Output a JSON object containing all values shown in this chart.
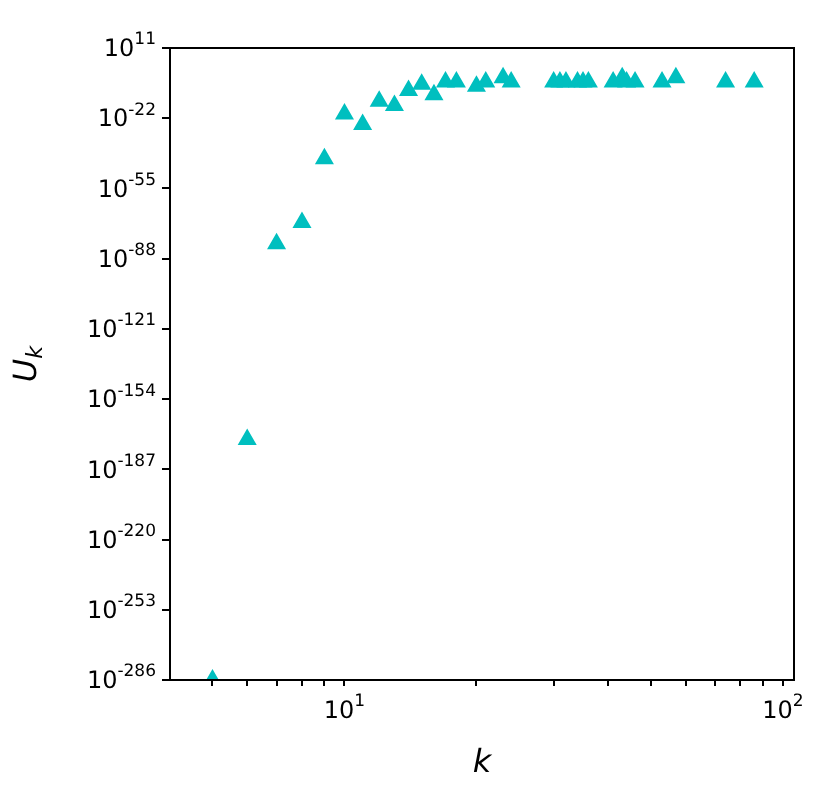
{
  "chart_data": {
    "type": "scatter",
    "xlabel": "k",
    "ylabel": "U$_{k}$",
    "log": "xy",
    "grid": false,
    "marker": "triangle",
    "xlim": [
      4,
      106
    ],
    "ylim": [
      1e-286,
      100000000000.0
    ],
    "xticks": [
      {
        "value": 5,
        "label": null
      },
      {
        "value": 6,
        "label": null
      },
      {
        "value": 7,
        "label": null
      },
      {
        "value": 8,
        "label": null
      },
      {
        "value": 9,
        "label": null
      },
      {
        "value": 10,
        "label": "10$^{1}$"
      },
      {
        "value": 20,
        "label": null
      },
      {
        "value": 30,
        "label": null
      },
      {
        "value": 40,
        "label": null
      },
      {
        "value": 50,
        "label": null
      },
      {
        "value": 60,
        "label": null
      },
      {
        "value": 70,
        "label": null
      },
      {
        "value": 80,
        "label": null
      },
      {
        "value": 90,
        "label": null
      },
      {
        "value": 100,
        "label": "10$^{2}$"
      }
    ],
    "yticks": [
      {
        "value": 1e-286,
        "label": "10$^{-286}$"
      },
      {
        "value": 1e-253,
        "label": "10$^{-253}$"
      },
      {
        "value": 1e-220,
        "label": "10$^{-220}$"
      },
      {
        "value": 1e-187,
        "label": "10$^{-187}$"
      },
      {
        "value": 1e-154,
        "label": "10$^{-154}$"
      },
      {
        "value": 1e-121,
        "label": "10$^{-121}$"
      },
      {
        "value": 1e-88,
        "label": "10$^{-88}$"
      },
      {
        "value": 1e-55,
        "label": "10$^{-55}$"
      },
      {
        "value": 1e-22,
        "label": "10$^{-22}$"
      },
      {
        "value": 100000000000.0,
        "label": "10$^{11}$"
      }
    ],
    "x": [
      5,
      6,
      7,
      8,
      9,
      10,
      11,
      12,
      13,
      14,
      15,
      16,
      17,
      18,
      20,
      21,
      23,
      24,
      30,
      31,
      32,
      34,
      35,
      36,
      41,
      43,
      44,
      46,
      53,
      57,
      74,
      86
    ],
    "series": [
      {
        "color": "#00bfbf",
        "values": [
          1e-286,
          1e-173,
          1e-81,
          1e-71,
          1e-41,
          1e-20,
          1e-25,
          1e-14,
          1e-16,
          1e-09,
          1e-06,
          1e-11,
          1e-05,
          1e-05,
          1e-07,
          1e-05,
          0.001,
          1e-05,
          1e-05,
          1e-05,
          1e-05,
          1e-05,
          1e-05,
          1e-05,
          1e-05,
          0.001,
          1e-05,
          1e-05,
          1e-05,
          0.001,
          1e-05,
          1e-05
        ]
      }
    ]
  }
}
